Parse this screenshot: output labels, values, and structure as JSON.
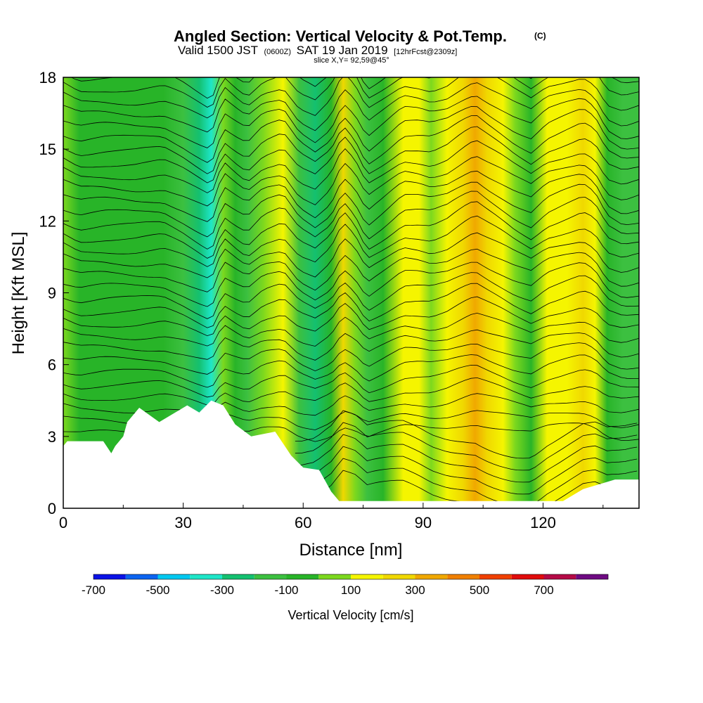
{
  "chart_data": {
    "type": "heatmap",
    "title": "Angled Section: Vertical Velocity & Pot.Temp.",
    "title_mark": "(C)",
    "valid_prefix": "Valid 1500 JST",
    "valid_utc": "(0600Z)",
    "valid_date": "SAT 19 Jan 2019",
    "forecast": "[12hrFcst@2309z]",
    "slice": "slice X,Y= 92,59@45°",
    "xlabel": "Distance [nm]",
    "ylabel": "Height [Kft MSL]",
    "xlim": [
      0,
      144
    ],
    "ylim": [
      0,
      18
    ],
    "xticks": [
      "0",
      "30",
      "60",
      "90",
      "120"
    ],
    "yticks": [
      "0",
      "3",
      "6",
      "9",
      "12",
      "15",
      "18"
    ],
    "grid": false,
    "colorbar": {
      "label": "Vertical Velocity [cm/s]",
      "tick_labels": [
        "-700",
        "-500",
        "-300",
        "-100",
        "100",
        "300",
        "500",
        "700"
      ],
      "levels": [
        -700,
        -600,
        -500,
        -400,
        -300,
        -200,
        -100,
        0,
        100,
        200,
        300,
        400,
        500,
        600,
        700,
        800
      ],
      "colors": [
        "#0a12e6",
        "#0c64f0",
        "#00c8f0",
        "#1ee6c8",
        "#14c070",
        "#3cc040",
        "#28b428",
        "#7cd81e",
        "#f5f500",
        "#f0d800",
        "#f0a800",
        "#f08000",
        "#f04000",
        "#e00c0c",
        "#b40a46",
        "#6e0a82"
      ]
    },
    "vertical_velocity_columns_cm_s": [
      {
        "x": 0,
        "w": 0
      },
      {
        "x": 4,
        "w": -80
      },
      {
        "x": 10,
        "w": -60
      },
      {
        "x": 18,
        "w": -70
      },
      {
        "x": 25,
        "w": -50
      },
      {
        "x": 30,
        "w": -150
      },
      {
        "x": 34,
        "w": -250
      },
      {
        "x": 37,
        "w": -320
      },
      {
        "x": 40,
        "w": 80
      },
      {
        "x": 43,
        "w": -30
      },
      {
        "x": 46,
        "w": -120
      },
      {
        "x": 50,
        "w": 50
      },
      {
        "x": 55,
        "w": 120
      },
      {
        "x": 59,
        "w": -120
      },
      {
        "x": 63,
        "w": -220
      },
      {
        "x": 67,
        "w": -60
      },
      {
        "x": 70,
        "w": 230
      },
      {
        "x": 73,
        "w": 80
      },
      {
        "x": 76,
        "w": -190
      },
      {
        "x": 80,
        "w": -60
      },
      {
        "x": 85,
        "w": 120
      },
      {
        "x": 89,
        "w": 110
      },
      {
        "x": 92,
        "w": 80
      },
      {
        "x": 96,
        "w": 140
      },
      {
        "x": 100,
        "w": 260
      },
      {
        "x": 103,
        "w": 330
      },
      {
        "x": 106,
        "w": 240
      },
      {
        "x": 110,
        "w": 130
      },
      {
        "x": 113,
        "w": 40
      },
      {
        "x": 117,
        "w": -50
      },
      {
        "x": 121,
        "w": 100
      },
      {
        "x": 126,
        "w": 180
      },
      {
        "x": 130,
        "w": 240
      },
      {
        "x": 133,
        "w": 150
      },
      {
        "x": 136,
        "w": -90
      },
      {
        "x": 140,
        "w": -180
      },
      {
        "x": 144,
        "w": -140
      }
    ],
    "terrain_kft": [
      {
        "x": 0,
        "h": 2.6
      },
      {
        "x": 1,
        "h": 2.8
      },
      {
        "x": 10,
        "h": 2.8
      },
      {
        "x": 12,
        "h": 2.3
      },
      {
        "x": 13,
        "h": 2.6
      },
      {
        "x": 15,
        "h": 3.0
      },
      {
        "x": 16,
        "h": 3.6
      },
      {
        "x": 19,
        "h": 4.2
      },
      {
        "x": 24,
        "h": 3.6
      },
      {
        "x": 31,
        "h": 4.3
      },
      {
        "x": 34,
        "h": 4.0
      },
      {
        "x": 37,
        "h": 4.5
      },
      {
        "x": 40,
        "h": 4.3
      },
      {
        "x": 43,
        "h": 3.5
      },
      {
        "x": 47,
        "h": 3.0
      },
      {
        "x": 53,
        "h": 3.2
      },
      {
        "x": 57,
        "h": 2.2
      },
      {
        "x": 60,
        "h": 1.7
      },
      {
        "x": 64,
        "h": 1.6
      },
      {
        "x": 67,
        "h": 0.7
      },
      {
        "x": 69,
        "h": 0.3
      },
      {
        "x": 76,
        "h": 0.3
      },
      {
        "x": 79,
        "h": 0.3
      },
      {
        "x": 110,
        "h": 0.3
      },
      {
        "x": 117,
        "h": 0.3
      },
      {
        "x": 125,
        "h": 0.3
      },
      {
        "x": 130,
        "h": 0.8
      },
      {
        "x": 138,
        "h": 1.2
      },
      {
        "x": 144,
        "h": 1.2
      }
    ]
  }
}
